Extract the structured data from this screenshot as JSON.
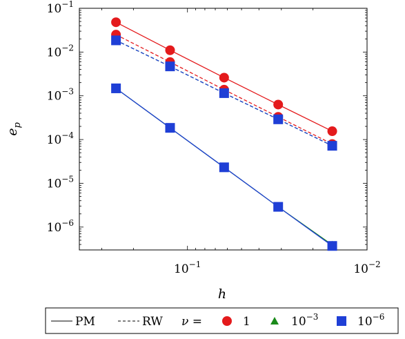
{
  "chart_data": {
    "type": "line",
    "xscale": "log",
    "yscale": "log",
    "x_axis_reversed": true,
    "xlim": [
      0.4,
      0.01
    ],
    "ylim": [
      3e-07,
      0.1
    ],
    "xlabel": "h",
    "ylabel": "e_p",
    "x_ticks": [
      {
        "value": 0.1,
        "base": "10",
        "exp": "−1"
      },
      {
        "value": 0.01,
        "base": "10",
        "exp": "−2"
      }
    ],
    "y_ticks": [
      {
        "value": 0.1,
        "base": "10",
        "exp": "−1"
      },
      {
        "value": 0.01,
        "base": "10",
        "exp": "−2"
      },
      {
        "value": 0.001,
        "base": "10",
        "exp": "−3"
      },
      {
        "value": 0.0001,
        "base": "10",
        "exp": "−4"
      },
      {
        "value": 1e-05,
        "base": "10",
        "exp": "−5"
      },
      {
        "value": 1e-06,
        "base": "10",
        "exp": "−6"
      }
    ],
    "x": [
      0.25,
      0.125,
      0.0625,
      0.03125,
      0.015625
    ],
    "series": [
      {
        "method": "PM",
        "nu": "1",
        "color": "#e41a1c",
        "marker": "circle",
        "line": "solid",
        "values": [
          0.048,
          0.011,
          0.0026,
          0.00063,
          0.000155
        ]
      },
      {
        "method": "RW",
        "nu": "1",
        "color": "#e41a1c",
        "marker": "circle",
        "line": "dashed",
        "values": [
          0.025,
          0.0059,
          0.00138,
          0.00033,
          7.9e-05
        ]
      },
      {
        "method": "RW",
        "nu": "10^-3",
        "color": "#1a8a1a",
        "marker": "triangle",
        "line": "dashed",
        "values": [
          0.0185,
          0.0047,
          0.00115,
          0.00029,
          7.2e-05
        ]
      },
      {
        "method": "RW",
        "nu": "10^-6",
        "color": "#1f3fd6",
        "marker": "square",
        "line": "dashed",
        "values": [
          0.0185,
          0.0047,
          0.00115,
          0.00029,
          7.2e-05
        ]
      },
      {
        "method": "PM",
        "nu": "10^-3",
        "color": "#1a8a1a",
        "marker": "triangle",
        "line": "solid",
        "values": [
          0.00148,
          0.000185,
          2.32e-05,
          2.9e-06,
          3.9e-07
        ]
      },
      {
        "method": "PM",
        "nu": "10^-6",
        "color": "#1f3fd6",
        "marker": "square",
        "line": "solid",
        "values": [
          0.00148,
          0.000185,
          2.32e-05,
          2.9e-06,
          3.7e-07
        ]
      }
    ],
    "legend": {
      "placement": "bottom",
      "pm_label": "PM",
      "rw_label": "RW",
      "nu_label": "ν =",
      "items": [
        {
          "label": "1",
          "color": "#e41a1c",
          "marker": "circle"
        },
        {
          "label_base": "10",
          "label_exp": "−3",
          "color": "#1a8a1a",
          "marker": "triangle"
        },
        {
          "label_base": "10",
          "label_exp": "−6",
          "color": "#1f3fd6",
          "marker": "square"
        }
      ]
    }
  }
}
